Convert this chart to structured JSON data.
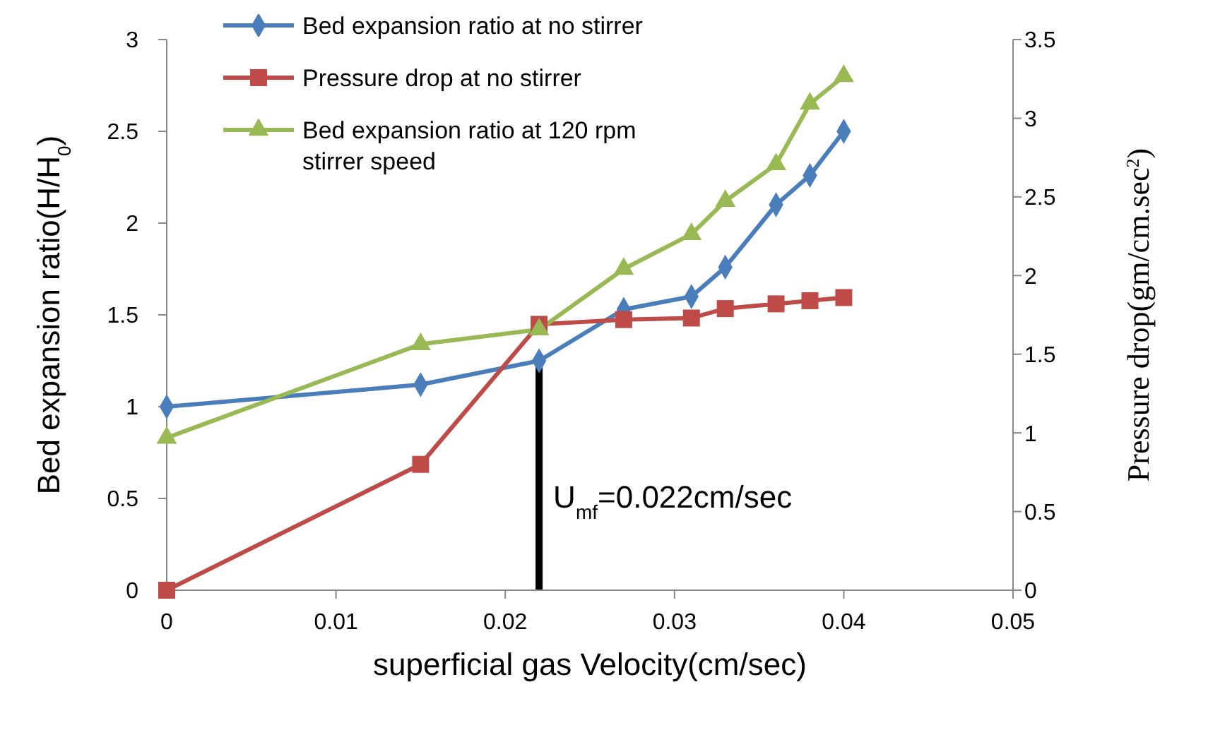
{
  "chart_data": {
    "type": "line",
    "xlabel": "superficial gas Velocity(cm/sec)",
    "ylabel": "Bed expansion ratio(H/H$_{0}$)",
    "y2label": "Pressure drop(gm/cm.sec$^{2}$)",
    "x": [
      0,
      0.015,
      0.022,
      0.027,
      0.031,
      0.033,
      0.036,
      0.038,
      0.04
    ],
    "series": [
      {
        "name": "Bed expansion ratio at no stirrer",
        "color": "#4a7ebb",
        "marker": "diamond",
        "values": [
          1.0,
          1.12,
          1.25,
          1.53,
          1.6,
          1.76,
          2.1,
          2.26,
          2.5
        ]
      },
      {
        "name": "Pressure drop at no stirrer",
        "color": "#be4b48",
        "marker": "square",
        "axis": "y2",
        "values": [
          0,
          0.8,
          1.69,
          1.72,
          1.73,
          1.79,
          1.82,
          1.84,
          1.86
        ]
      },
      {
        "name": "Bed expansion ratio at 120 rpm stirrer speed",
        "color": "#98b954",
        "marker": "triangle",
        "values": [
          0.83,
          1.34,
          1.42,
          1.75,
          1.94,
          2.12,
          2.32,
          2.65,
          2.8
        ]
      },
      {
        "color": "#000000",
        "marker": "none",
        "x": [
          0.022,
          0.022
        ],
        "values": [
          0,
          1.25
        ]
      }
    ],
    "annotations": [
      {
        "text": "U$_{mf}$=0.022cm/sec",
        "x": 0.022,
        "y": 0.45
      }
    ],
    "xlim": [
      0,
      0.05
    ],
    "xticks": [
      0,
      0.01,
      0.02,
      0.03,
      0.04,
      0.05
    ],
    "ylim": [
      0,
      3
    ],
    "yticks": [
      0,
      0.5,
      1,
      1.5,
      2,
      2.5,
      3
    ],
    "y2lim": [
      0,
      3.5
    ],
    "y2ticks": [
      0,
      0.5,
      1,
      1.5,
      2,
      2.5,
      3,
      3.5
    ],
    "grid": false,
    "legend": "top left"
  }
}
